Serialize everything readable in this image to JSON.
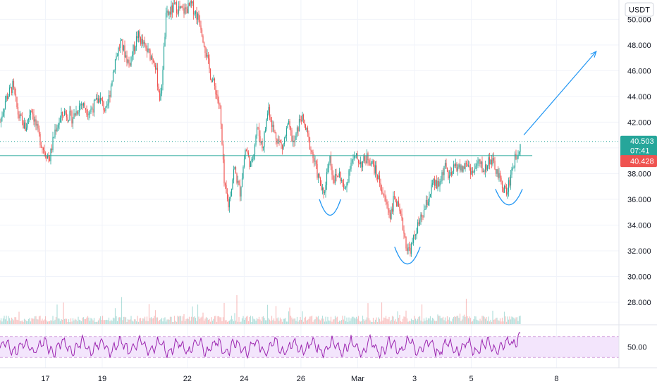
{
  "chart_data": {
    "type": "candlestick",
    "currency_label": "USDT",
    "y_ticks": [
      "50.000",
      "48.000",
      "46.000",
      "44.000",
      "42.000",
      "40.000",
      "38.000",
      "36.000",
      "34.000",
      "32.000",
      "30.000",
      "28.000"
    ],
    "y_tick_values": [
      50,
      48,
      46,
      44,
      42,
      40,
      38,
      36,
      34,
      32,
      30,
      28
    ],
    "ylim": [
      26.3,
      51.5
    ],
    "x_ticks": [
      "17",
      "19",
      "22",
      "24",
      "26",
      "Mar",
      "3",
      "5",
      "8"
    ],
    "x_tick_positions": [
      1,
      3,
      6,
      8,
      10,
      12,
      14,
      16,
      19
    ],
    "xlim": [
      -0.6,
      21.2
    ],
    "last_price": "40.503",
    "countdown": "07:41",
    "marker_price": "40.428",
    "last_price_value": 40.503,
    "marker_price_value": 40.428,
    "neckline_value": 39.4,
    "rsi_axis_label": "50.00",
    "rsi_band_upper": 70,
    "rsi_band_lower": 30,
    "colors": {
      "up": "#26a69a",
      "down": "#ef5350",
      "line": "#26a69a",
      "annotation": "#2196f3",
      "rsi_line": "#9c27b0",
      "rsi_band": "#f3e5fc",
      "last_price": "#26a69a",
      "marker_price": "#ef5350"
    },
    "price_path": [
      [
        -0.6,
        42.0
      ],
      [
        -0.4,
        43.8
      ],
      [
        -0.15,
        44.8
      ],
      [
        0.05,
        42.5
      ],
      [
        0.3,
        41.5
      ],
      [
        0.5,
        43.2
      ],
      [
        0.75,
        41.0
      ],
      [
        0.95,
        39.8
      ],
      [
        1.15,
        39.2
      ],
      [
        1.35,
        41.5
      ],
      [
        1.65,
        42.8
      ],
      [
        1.95,
        42.3
      ],
      [
        2.25,
        43.5
      ],
      [
        2.55,
        42.8
      ],
      [
        2.9,
        43.9
      ],
      [
        3.15,
        42.7
      ],
      [
        3.45,
        46.8
      ],
      [
        3.65,
        48.2
      ],
      [
        3.95,
        46.5
      ],
      [
        4.25,
        48.8
      ],
      [
        4.55,
        47.6
      ],
      [
        4.85,
        46.8
      ],
      [
        5.05,
        43.5
      ],
      [
        5.25,
        50.2
      ],
      [
        5.55,
        51.0
      ],
      [
        5.85,
        50.6
      ],
      [
        6.15,
        51.1
      ],
      [
        6.45,
        49.8
      ],
      [
        6.65,
        47.5
      ],
      [
        6.8,
        45.8
      ],
      [
        7.0,
        44.5
      ],
      [
        7.15,
        43.0
      ],
      [
        7.3,
        37.0
      ],
      [
        7.45,
        35.5
      ],
      [
        7.65,
        38.5
      ],
      [
        7.85,
        36.5
      ],
      [
        8.05,
        40.0
      ],
      [
        8.25,
        38.5
      ],
      [
        8.45,
        41.6
      ],
      [
        8.65,
        40.0
      ],
      [
        8.85,
        43.2
      ],
      [
        9.05,
        41.2
      ],
      [
        9.35,
        40.0
      ],
      [
        9.55,
        41.8
      ],
      [
        9.75,
        40.2
      ],
      [
        10.0,
        42.5
      ],
      [
        10.2,
        41.2
      ],
      [
        10.4,
        39.5
      ],
      [
        10.6,
        37.8
      ],
      [
        10.8,
        36.2
      ],
      [
        11.0,
        39.5
      ],
      [
        11.15,
        37.5
      ],
      [
        11.35,
        38.0
      ],
      [
        11.55,
        36.5
      ],
      [
        11.75,
        39.0
      ],
      [
        11.95,
        39.2
      ],
      [
        12.15,
        38.8
      ],
      [
        12.35,
        39.3
      ],
      [
        12.55,
        38.6
      ],
      [
        12.75,
        37.5
      ],
      [
        12.95,
        36.0
      ],
      [
        13.15,
        34.8
      ],
      [
        13.3,
        36.3
      ],
      [
        13.45,
        35.0
      ],
      [
        13.6,
        33.8
      ],
      [
        13.75,
        32.0
      ],
      [
        13.9,
        32.3
      ],
      [
        14.05,
        33.6
      ],
      [
        14.25,
        34.5
      ],
      [
        14.45,
        35.8
      ],
      [
        14.65,
        37.2
      ],
      [
        14.85,
        37.0
      ],
      [
        15.05,
        38.6
      ],
      [
        15.25,
        37.6
      ],
      [
        15.45,
        38.7
      ],
      [
        15.65,
        38.3
      ],
      [
        15.85,
        38.8
      ],
      [
        16.05,
        38.0
      ],
      [
        16.25,
        38.9
      ],
      [
        16.45,
        38.2
      ],
      [
        16.65,
        39.2
      ],
      [
        16.85,
        38.4
      ],
      [
        17.05,
        37.2
      ],
      [
        17.25,
        36.5
      ],
      [
        17.45,
        38.5
      ],
      [
        17.6,
        39.5
      ],
      [
        17.75,
        40.5
      ]
    ],
    "annotations": {
      "arrow_from": [
        17.85,
        41.0
      ],
      "arrow_to": [
        20.4,
        47.5
      ],
      "arcs": [
        {
          "x_start": 10.65,
          "x_end": 11.4,
          "y_top": 36.0,
          "y_bottom": 34.7
        },
        {
          "x_start": 13.3,
          "x_end": 14.2,
          "y_top": 32.3,
          "y_bottom": 30.9
        },
        {
          "x_start": 16.85,
          "x_end": 17.8,
          "y_top": 36.8,
          "y_bottom": 35.5
        }
      ]
    }
  }
}
